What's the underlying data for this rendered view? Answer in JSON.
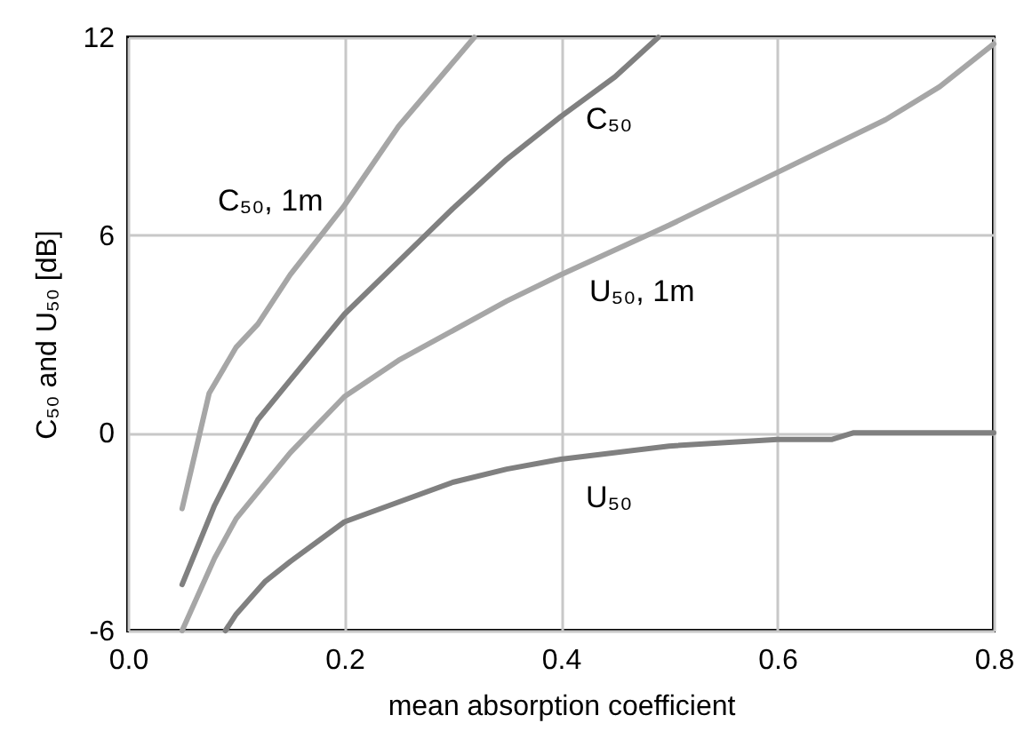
{
  "chart_data": {
    "type": "line",
    "xlabel": "mean absorption coefficient",
    "ylabel": "C₅₀ and U₅₀ [dB]",
    "xlim": [
      0,
      0.8
    ],
    "xticks": [
      {
        "value": 0,
        "label": "0.0"
      },
      {
        "value": 0.2,
        "label": "0.2"
      },
      {
        "value": 0.4,
        "label": "0.4"
      },
      {
        "value": 0.6,
        "label": "0.6"
      },
      {
        "value": 0.8,
        "label": "0.8"
      }
    ],
    "ylim": [
      -6,
      12
    ],
    "yticks": [
      -6,
      0,
      6,
      12
    ],
    "grid": true,
    "marker": "none",
    "line_style": "solid",
    "series": [
      {
        "name": "C₅₀, 1m",
        "color": "#a6a6a6",
        "x": [
          0.05,
          0.075,
          0.1,
          0.12,
          0.15,
          0.2,
          0.25,
          0.32
        ],
        "values": [
          -2.3,
          1.2,
          2.6,
          3.3,
          4.8,
          6.9,
          9.3,
          12
        ]
      },
      {
        "name": "C₅₀",
        "color": "#808080",
        "x": [
          0.05,
          0.08,
          0.1,
          0.12,
          0.15,
          0.2,
          0.25,
          0.3,
          0.35,
          0.4,
          0.45,
          0.49
        ],
        "values": [
          -4.6,
          -2.2,
          -0.9,
          0.4,
          1.6,
          3.6,
          5.2,
          6.8,
          8.3,
          9.6,
          10.8,
          12
        ]
      },
      {
        "name": "U₅₀, 1m",
        "color": "#a6a6a6",
        "x": [
          0.05,
          0.08,
          0.1,
          0.12,
          0.15,
          0.2,
          0.25,
          0.3,
          0.35,
          0.4,
          0.5,
          0.6,
          0.7,
          0.75,
          0.8
        ],
        "values": [
          -6,
          -3.8,
          -2.6,
          -1.8,
          -0.6,
          1.1,
          2.2,
          3.1,
          4,
          4.8,
          6.3,
          7.9,
          9.5,
          10.5,
          11.8
        ]
      },
      {
        "name": "U₅₀",
        "color": "#808080",
        "x": [
          0.09,
          0.1,
          0.127,
          0.15,
          0.2,
          0.25,
          0.3,
          0.35,
          0.4,
          0.5,
          0.6,
          0.65,
          0.67,
          0.8
        ],
        "values": [
          -6,
          -5.5,
          -4.5,
          -3.9,
          -2.7,
          -2.1,
          -1.5,
          -1.1,
          -0.8,
          -0.4,
          -0.2,
          -0.2,
          0,
          0
        ]
      }
    ]
  }
}
